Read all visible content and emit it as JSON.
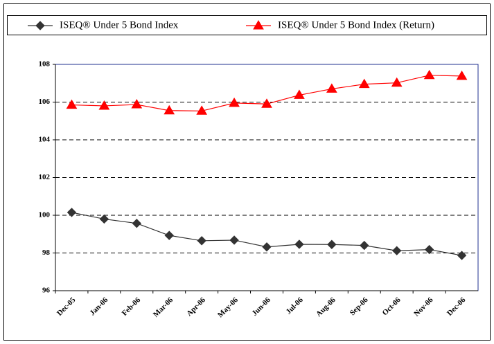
{
  "chart_data": {
    "type": "line",
    "categories": [
      "Dec-05",
      "Jan-06",
      "Feb-06",
      "Mar-06",
      "Apr-06",
      "May-06",
      "Jun-06",
      "Jul-06",
      "Aug-06",
      "Sep-06",
      "Oct-06",
      "Nov-06",
      "Dec-06"
    ],
    "series": [
      {
        "name": "ISEQ® Under 5 Bond Index",
        "color": "#333333",
        "marker": "diamond",
        "values": [
          100.15,
          99.8,
          99.57,
          98.93,
          98.65,
          98.68,
          98.32,
          98.46,
          98.45,
          98.4,
          98.12,
          98.18,
          97.87
        ]
      },
      {
        "name": "ISEQ® Under 5 Bond Index (Return)",
        "color": "#ff0000",
        "marker": "triangle",
        "values": [
          105.85,
          105.8,
          105.87,
          105.55,
          105.53,
          105.95,
          105.9,
          106.37,
          106.7,
          106.95,
          107.02,
          107.42,
          107.38
        ]
      }
    ],
    "ylim": [
      96,
      108
    ],
    "yticks": [
      96,
      98,
      100,
      102,
      104,
      106,
      108
    ],
    "grid": true,
    "legend": "top"
  }
}
